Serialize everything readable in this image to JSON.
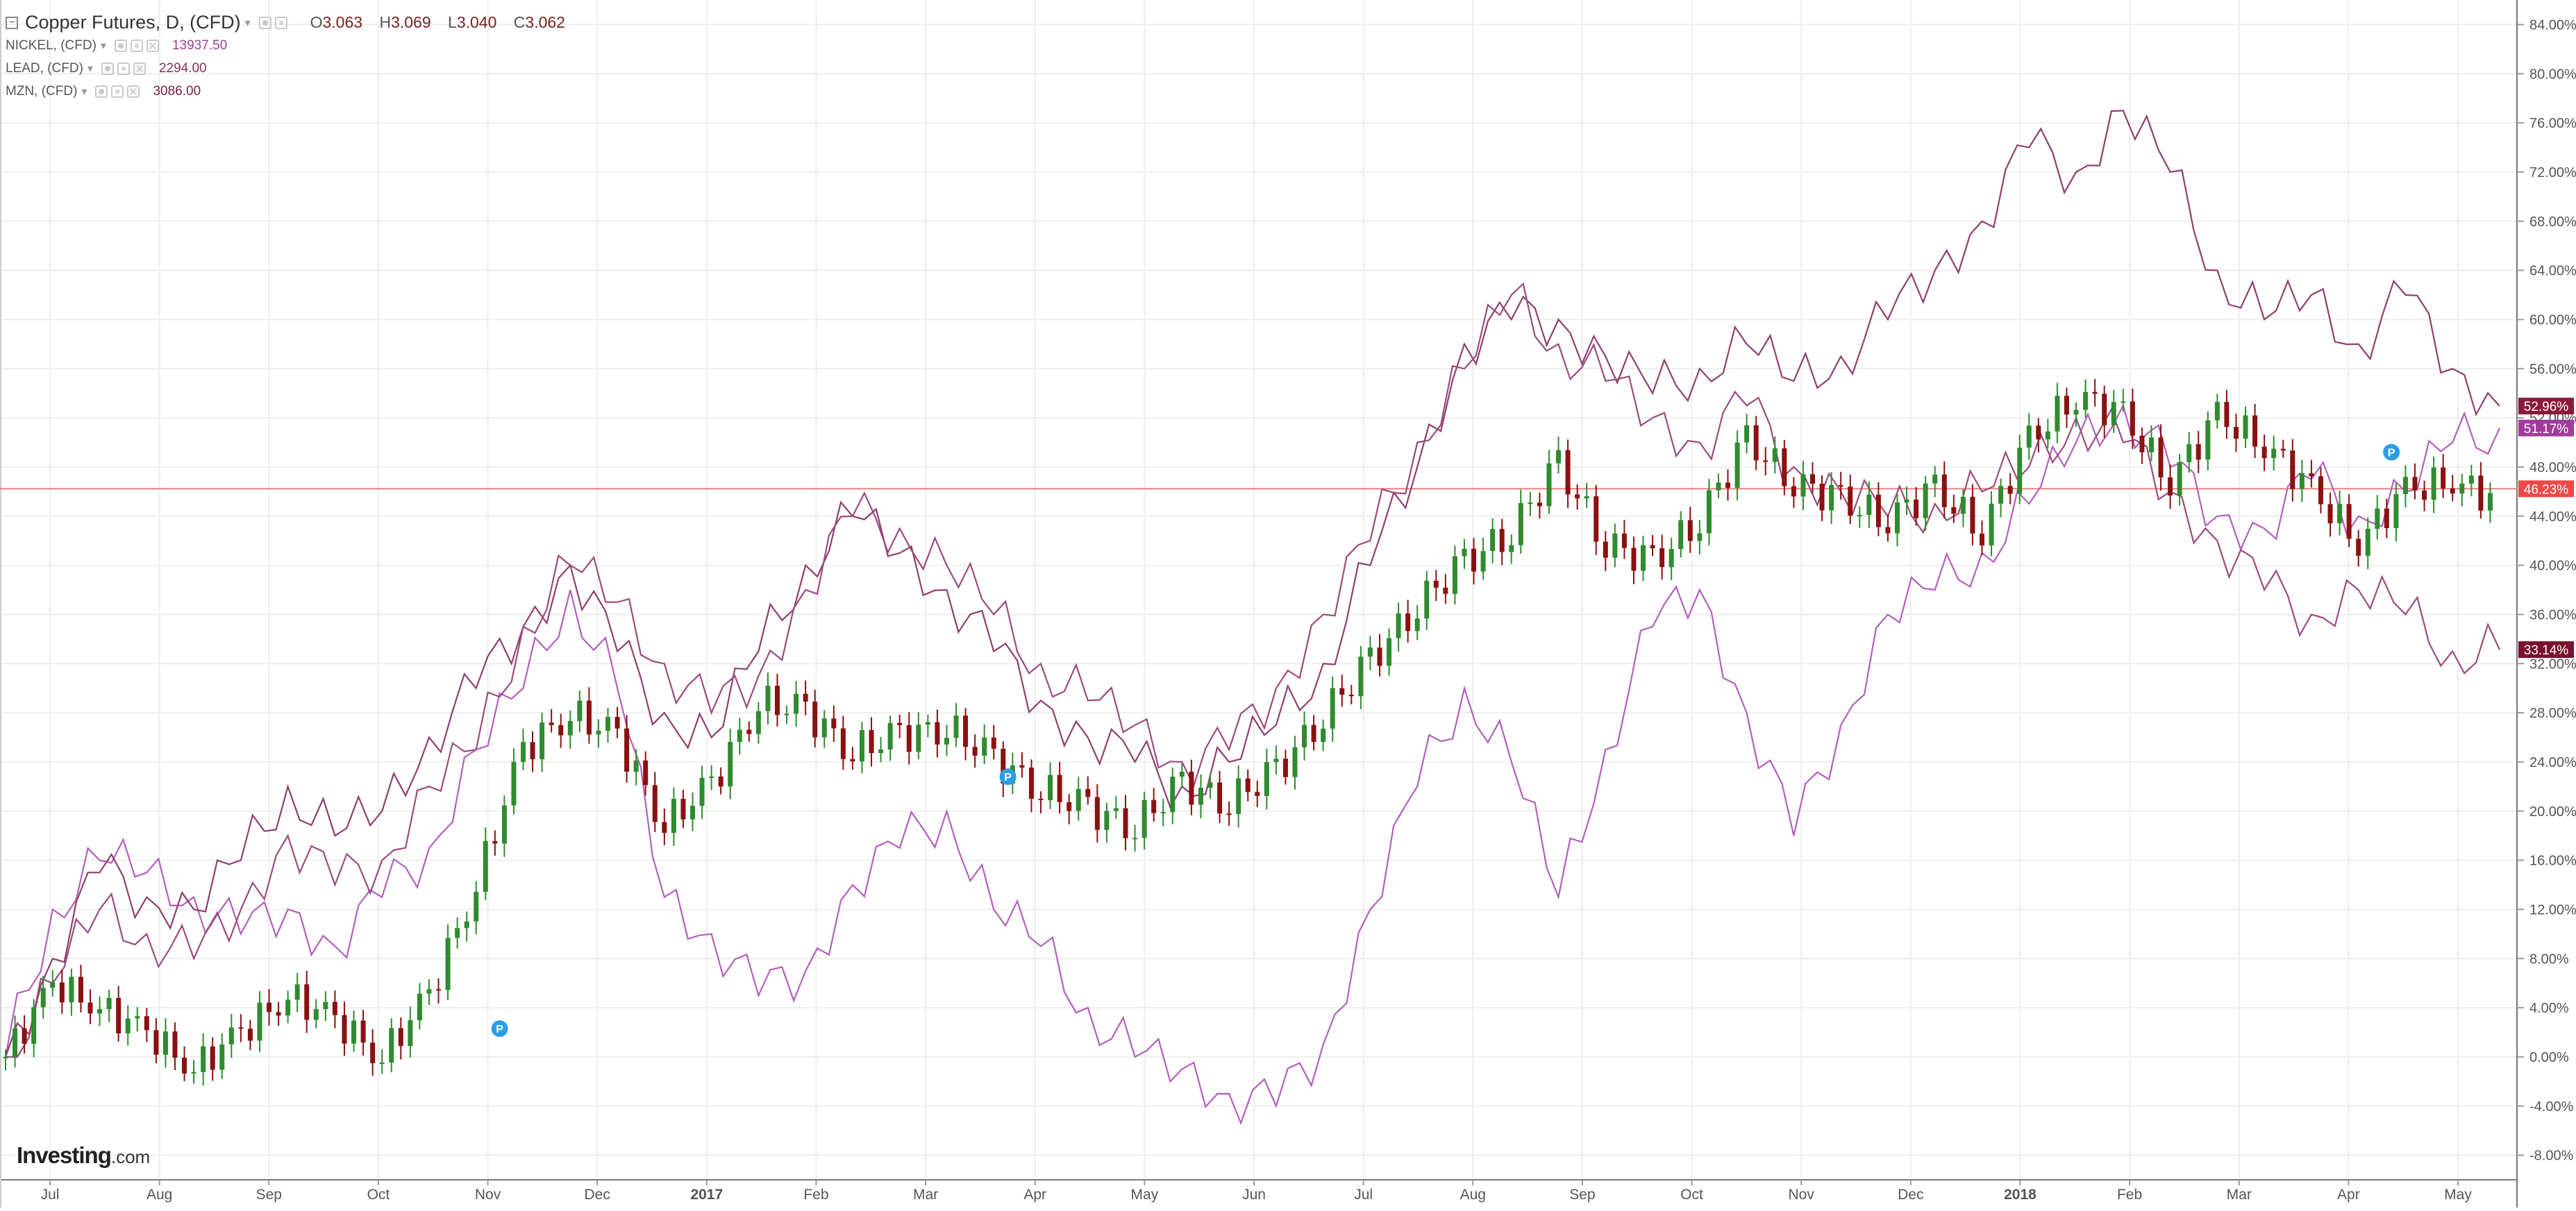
{
  "header": {
    "main_symbol": "Copper Futures, D, (CFD)",
    "ohlc": [
      {
        "key": "O",
        "value": "3.063"
      },
      {
        "key": "H",
        "value": "3.069"
      },
      {
        "key": "L",
        "value": "3.040"
      },
      {
        "key": "C",
        "value": "3.062"
      }
    ],
    "comparisons": [
      {
        "symbol": "NICKEL, (CFD)",
        "value": "13937.50",
        "color": "#9c3f8f"
      },
      {
        "symbol": "LEAD, (CFD)",
        "value": "2294.00",
        "color": "#8a2f5a"
      },
      {
        "symbol": "MZN, (CFD)",
        "value": "3086.00",
        "color": "#7a1e3a"
      }
    ]
  },
  "logo": {
    "brand": "Investing",
    "suffix": ".com"
  },
  "colors": {
    "up": "#2e8b2e",
    "down": "#8b1010",
    "nickel": "#b25fbd",
    "lead": "#8e3e6e",
    "mzn": "#9b4a7f",
    "copper_line": "#f08080",
    "grid": "#eeeeee"
  },
  "chart_data": {
    "type": "candlestick",
    "title": "Copper Futures, D, (CFD)",
    "scale": "percent",
    "grid": true,
    "x_labels": [
      "Jul",
      "Aug",
      "Sep",
      "Oct",
      "Nov",
      "Dec",
      "2017",
      "Feb",
      "Mar",
      "Apr",
      "May",
      "Jun",
      "Jul",
      "Aug",
      "Sep",
      "Oct",
      "Nov",
      "Dec",
      "2018",
      "Feb",
      "Mar",
      "Apr",
      "May"
    ],
    "y_ticks": [
      "84.00%",
      "80.00%",
      "76.00%",
      "72.00%",
      "68.00%",
      "64.00%",
      "60.00%",
      "56.00%",
      "52.00%",
      "48.00%",
      "44.00%",
      "40.00%",
      "36.00%",
      "32.00%",
      "28.00%",
      "24.00%",
      "20.00%",
      "16.00%",
      "12.00%",
      "8.00%",
      "4.00%",
      "0.00%",
      "-4.00%",
      "-8.00%"
    ],
    "ylim": [
      -10,
      86
    ],
    "copper_candles_weekly": [
      0,
      6,
      4,
      2,
      -1,
      2,
      5,
      3,
      0,
      5,
      14,
      25,
      28,
      26,
      19,
      22,
      29,
      28,
      25,
      26,
      27,
      24,
      22,
      20,
      19,
      22,
      21,
      23,
      28,
      32,
      37,
      40,
      43,
      48,
      42,
      40,
      44,
      50,
      47,
      45,
      44,
      46,
      43,
      50,
      54,
      52,
      47,
      52,
      50,
      46,
      42,
      46,
      47,
      45
    ],
    "series": [
      {
        "name": "NICKEL, (CFD)",
        "values": [
          0,
          12,
          16,
          15,
          13,
          10,
          12,
          9,
          13,
          17,
          25,
          30,
          38,
          30,
          13,
          10,
          5,
          7,
          14,
          17,
          20,
          12,
          9,
          4,
          0,
          -1,
          -3,
          -4,
          1,
          12,
          22,
          30,
          24,
          13,
          25,
          35,
          38,
          28,
          18,
          27,
          36,
          38,
          41,
          45,
          50,
          53,
          48,
          44,
          43,
          47,
          44,
          46,
          50,
          51.17
        ]
      },
      {
        "name": "LEAD, (CFD)",
        "values": [
          0,
          8,
          15,
          13,
          12,
          16,
          22,
          18,
          20,
          26,
          30,
          35,
          40,
          33,
          28,
          26,
          33,
          40,
          44,
          41,
          38,
          33,
          29,
          26,
          24,
          22,
          24,
          27,
          32,
          40,
          48,
          58,
          60,
          60,
          57,
          54,
          56,
          58,
          55,
          57,
          60,
          64,
          68,
          74,
          72,
          77,
          72,
          64,
          60,
          62,
          58,
          62,
          56,
          52.96
        ]
      },
      {
        "name": "MZN, (CFD)",
        "values": [
          0,
          6,
          12,
          10,
          8,
          12,
          18,
          14,
          16,
          22,
          25,
          35,
          40,
          37,
          32,
          28,
          31,
          38,
          44,
          43,
          40,
          36,
          32,
          29,
          27,
          24,
          25,
          30,
          36,
          42,
          50,
          56,
          62,
          58,
          55,
          52,
          50,
          53,
          48,
          46,
          44,
          45,
          46,
          48,
          52,
          50,
          46,
          42,
          38,
          36,
          38,
          36,
          33,
          33.14
        ]
      }
    ],
    "price_labels": [
      {
        "text": "52.96%",
        "value": 52.96,
        "color": "#8b1a3a"
      },
      {
        "text": "51.17%",
        "value": 51.17,
        "color": "#a23b9c"
      },
      {
        "text": "46.23%",
        "value": 46.23,
        "color": "#f04848"
      },
      {
        "text": "33.14%",
        "value": 33.14,
        "color": "#7a1030"
      }
    ],
    "markers": [
      {
        "label": "P",
        "week_index": 10.5,
        "value": 2.3
      },
      {
        "label": "P",
        "week_index": 21.3,
        "value": 22.8
      },
      {
        "label": "P",
        "week_index": 50.7,
        "value": 49.2
      }
    ]
  }
}
